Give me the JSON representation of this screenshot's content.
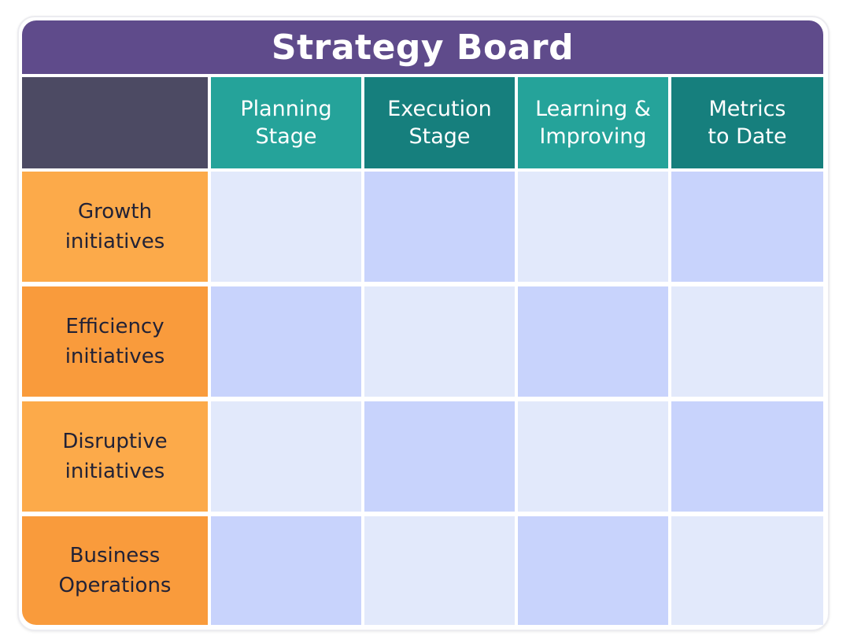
{
  "board": {
    "title": "Strategy Board"
  },
  "columns": [
    {
      "label": "Planning\nStage",
      "color": "#25a39a"
    },
    {
      "label": "Execution\nStage",
      "color": "#167f7d"
    },
    {
      "label": "Learning &\nImproving",
      "color": "#25a39a"
    },
    {
      "label": "Metrics\nto Date",
      "color": "#167f7d"
    }
  ],
  "rows": [
    {
      "label": "Growth\ninitiatives",
      "color": "#fcaa4a"
    },
    {
      "label": "Efficiency\ninitiatives",
      "color": "#f99b3c"
    },
    {
      "label": "Disruptive\ninitiatives",
      "color": "#fcaa4a"
    },
    {
      "label": "Business\nOperations",
      "color": "#f99b3c"
    }
  ],
  "colors": {
    "title_bar": "#5f4b8b",
    "corner": "#4c4a63",
    "cell_light": "#e2e9fb",
    "cell_dark": "#c8d3fc"
  }
}
